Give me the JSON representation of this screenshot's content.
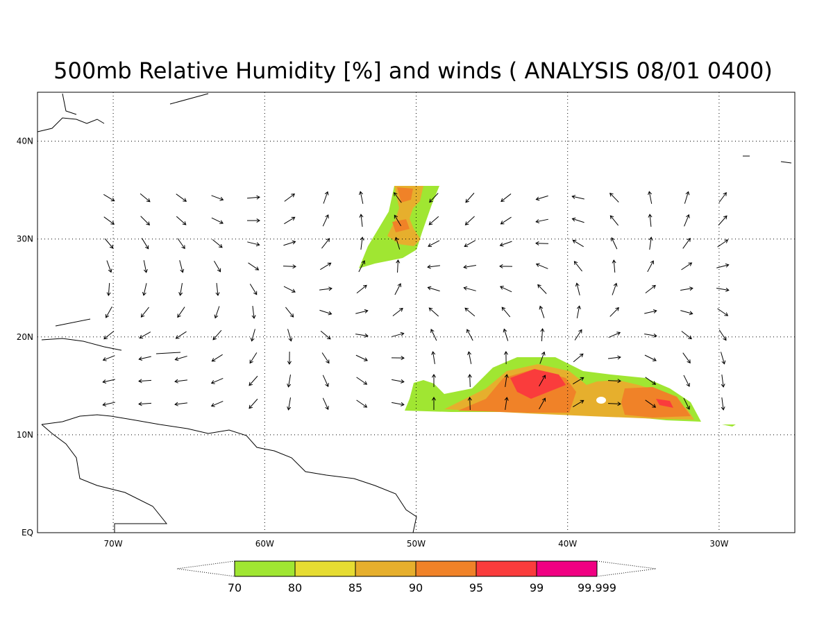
{
  "chart_data": {
    "type": "map",
    "title": "500mb Relative Humidity [%] and winds ( ANALYSIS 08/01 0400)",
    "xlim": [
      -75,
      -25
    ],
    "ylim": [
      0,
      45
    ],
    "xticks": [
      {
        "value": -70,
        "label": "70W"
      },
      {
        "value": -60,
        "label": "60W"
      },
      {
        "value": -50,
        "label": "50W"
      },
      {
        "value": -40,
        "label": "40W"
      },
      {
        "value": -30,
        "label": "30W"
      }
    ],
    "yticks": [
      {
        "value": 0,
        "label": "EQ"
      },
      {
        "value": 10,
        "label": "10N"
      },
      {
        "value": 20,
        "label": "20N"
      },
      {
        "value": 30,
        "label": "30N"
      },
      {
        "value": 40,
        "label": "40N"
      }
    ],
    "grid": true,
    "colorbar": {
      "levels": [
        70,
        80,
        85,
        90,
        95,
        99,
        99.999
      ],
      "colors": [
        "#a0e632",
        "#e6dc32",
        "#e6af2d",
        "#f08228",
        "#fa3c3c",
        "#f00082"
      ]
    }
  }
}
